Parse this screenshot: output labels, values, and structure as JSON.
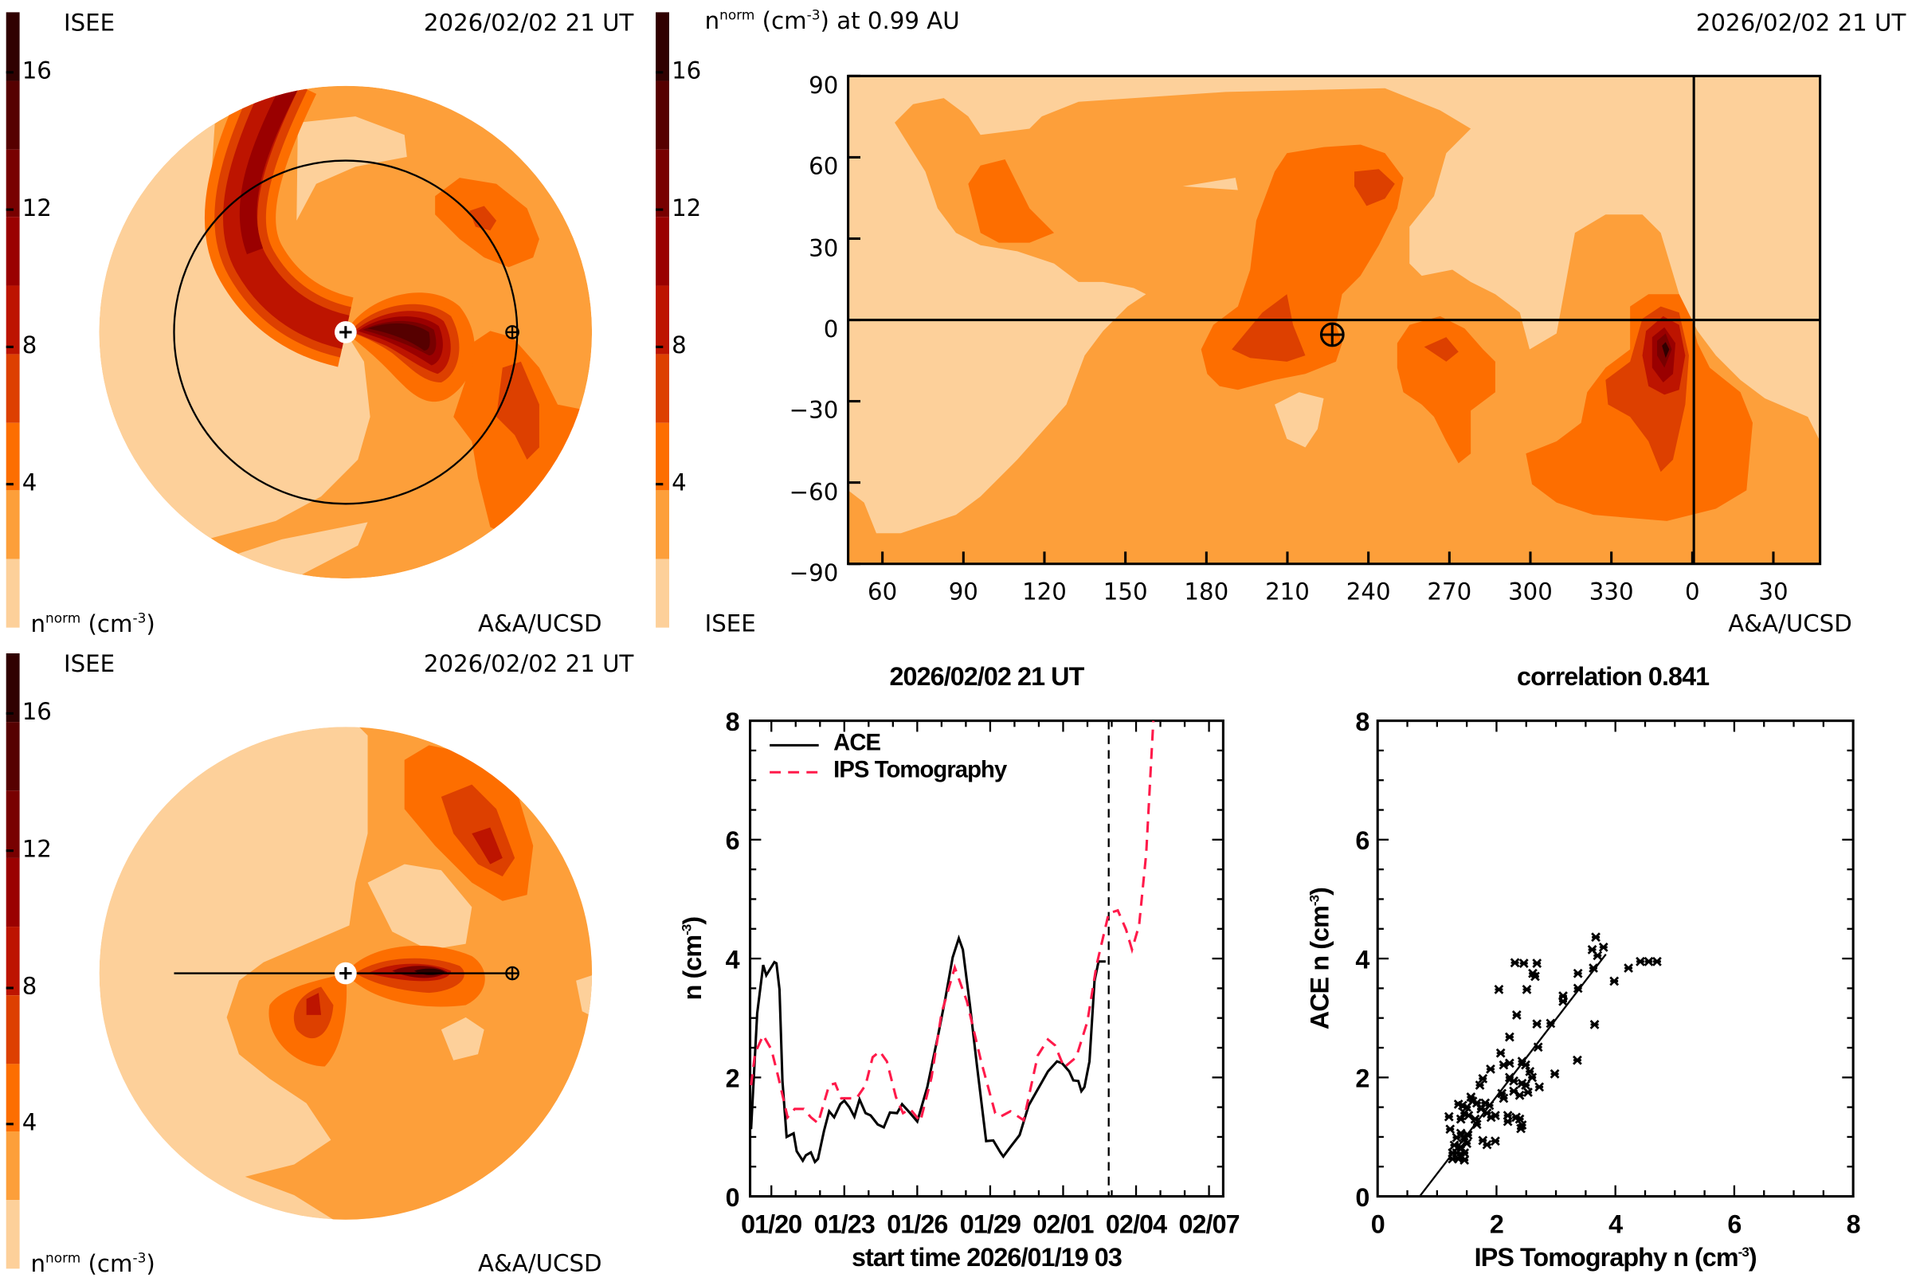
{
  "colors": {
    "levels": [
      "#fdd09a",
      "#fd9f3a",
      "#fd6e00",
      "#dd4000",
      "#bd1400",
      "#9a0000",
      "#780000",
      "#560000",
      "#300000"
    ],
    "ace": "#000000",
    "ips": "#ff1a4a"
  },
  "colorbar": {
    "ticks": [
      "16",
      "12",
      "8",
      "4"
    ],
    "range": [
      0,
      18
    ]
  },
  "panel_ecliptic": {
    "logo": "ISEE",
    "date": "2026/02/02 21 UT",
    "unit_n": "n",
    "unit_sup": "norm",
    "unit_rest": "(cm",
    "unit_exp": "-3",
    "unit_close": ")",
    "credit": "A&A/UCSD"
  },
  "panel_map": {
    "title_n": "n",
    "title_sup": "norm",
    "title_unit": "(cm",
    "title_exp": "-3",
    "title_rest": ") at 0.99 AU",
    "date": "2026/02/02 21 UT",
    "x_ticks": [
      "60",
      "90",
      "120",
      "150",
      "180",
      "210",
      "240",
      "270",
      "300",
      "330",
      "0",
      "30"
    ],
    "y_ticks": [
      "90",
      "60",
      "30",
      "0",
      "−30",
      "−60",
      "−90"
    ],
    "logo": "ISEE",
    "credit": "A&A/UCSD"
  },
  "panel_meridional": {
    "logo": "ISEE",
    "date": "2026/02/02 21 UT",
    "unit_n": "n",
    "unit_sup": "norm",
    "unit_rest": "(cm",
    "unit_exp": "-3",
    "unit_close": ")",
    "credit": "A&A/UCSD"
  },
  "chart_data": [
    {
      "type": "line",
      "title": "2026/02/02 21 UT",
      "xlabel": "start time 2026/01/19 03",
      "ylabel": "n (cm",
      "ylabel_exp": "-3",
      "ylabel_close": ")",
      "xlim": [
        "2026-01-19T03",
        "2026-02-07T14"
      ],
      "ylim": [
        0,
        8
      ],
      "y_ticks": [
        "0",
        "2",
        "4",
        "6",
        "8"
      ],
      "x_ticks": [
        {
          "label": "01/20",
          "t": "2026-01-20T00"
        },
        {
          "label": "01/23",
          "t": "2026-01-23T00"
        },
        {
          "label": "01/26",
          "t": "2026-01-26T00"
        },
        {
          "label": "01/29",
          "t": "2026-01-29T00"
        },
        {
          "label": "02/01",
          "t": "2026-02-01T00"
        },
        {
          "label": "02/04",
          "t": "2026-02-04T00"
        },
        {
          "label": "02/07",
          "t": "2026-02-07T00"
        }
      ],
      "current_time": "2026-02-02T21",
      "legend_position": "top-left",
      "series": [
        {
          "name": "ACE",
          "style": "solid",
          "points": [
            [
              "2026-01-19T04",
              1.13
            ],
            [
              "2026-01-19T10",
              3.08
            ],
            [
              "2026-01-19T16",
              3.89
            ],
            [
              "2026-01-19T19",
              3.72
            ],
            [
              "2026-01-20T03",
              3.94
            ],
            [
              "2026-01-20T05",
              3.92
            ],
            [
              "2026-01-20T08",
              3.48
            ],
            [
              "2026-01-20T11",
              1.94
            ],
            [
              "2026-01-20T15",
              1.0
            ],
            [
              "2026-01-20T22",
              1.06
            ],
            [
              "2026-01-21T01",
              0.76
            ],
            [
              "2026-01-21T07",
              0.6
            ],
            [
              "2026-01-21T10",
              0.69
            ],
            [
              "2026-01-21T15",
              0.74
            ],
            [
              "2026-01-21T19",
              0.58
            ],
            [
              "2026-01-21T22",
              0.63
            ],
            [
              "2026-01-22T04",
              1.1
            ],
            [
              "2026-01-22T09",
              1.43
            ],
            [
              "2026-01-22T14",
              1.33
            ],
            [
              "2026-01-22T20",
              1.55
            ],
            [
              "2026-01-23T00",
              1.61
            ],
            [
              "2026-01-23T05",
              1.5
            ],
            [
              "2026-01-23T10",
              1.34
            ],
            [
              "2026-01-23T15",
              1.63
            ],
            [
              "2026-01-23T21",
              1.4
            ],
            [
              "2026-01-24T02",
              1.36
            ],
            [
              "2026-01-24T09",
              1.21
            ],
            [
              "2026-01-24T15",
              1.16
            ],
            [
              "2026-01-24T21",
              1.41
            ],
            [
              "2026-01-25T04",
              1.4
            ],
            [
              "2026-01-25T09",
              1.55
            ],
            [
              "2026-01-25T17",
              1.4
            ],
            [
              "2026-01-26T00",
              1.26
            ],
            [
              "2026-01-26T10",
              1.84
            ],
            [
              "2026-01-26T21",
              2.74
            ],
            [
              "2026-01-27T04",
              3.35
            ],
            [
              "2026-01-27T11",
              4.02
            ],
            [
              "2026-01-27T17",
              4.34
            ],
            [
              "2026-01-27T21",
              4.15
            ],
            [
              "2026-01-28T04",
              3.21
            ],
            [
              "2026-01-28T11",
              2.2
            ],
            [
              "2026-01-28T20",
              0.93
            ],
            [
              "2026-01-29T03",
              0.94
            ],
            [
              "2026-01-29T10",
              0.74
            ],
            [
              "2026-01-29T13",
              0.67
            ],
            [
              "2026-01-29T20",
              0.83
            ],
            [
              "2026-01-30T05",
              1.03
            ],
            [
              "2026-01-30T14",
              1.53
            ],
            [
              "2026-01-30T23",
              1.8
            ],
            [
              "2026-01-31T09",
              2.1
            ],
            [
              "2026-01-31T18",
              2.27
            ],
            [
              "2026-01-31T23",
              2.24
            ],
            [
              "2026-02-01T06",
              2.1
            ],
            [
              "2026-02-01T10",
              1.95
            ],
            [
              "2026-02-01T15",
              1.94
            ],
            [
              "2026-02-01T18",
              1.77
            ],
            [
              "2026-02-01T21",
              1.84
            ],
            [
              "2026-02-02T02",
              2.27
            ],
            [
              "2026-02-02T07",
              3.62
            ],
            [
              "2026-02-02T11",
              3.95
            ],
            [
              "2026-02-02T18",
              3.95
            ]
          ]
        },
        {
          "name": "IPS Tomography",
          "style": "dashed",
          "points": [
            [
              "2026-01-19T04",
              1.87
            ],
            [
              "2026-01-19T08",
              2.41
            ],
            [
              "2026-01-19T16",
              2.71
            ],
            [
              "2026-01-20T00",
              2.47
            ],
            [
              "2026-01-20T07",
              2.0
            ],
            [
              "2026-01-20T16",
              1.33
            ],
            [
              "2026-01-20T23",
              1.47
            ],
            [
              "2026-01-21T08",
              1.47
            ],
            [
              "2026-01-21T15",
              1.33
            ],
            [
              "2026-01-21T22",
              1.23
            ],
            [
              "2026-01-22T09",
              1.87
            ],
            [
              "2026-01-22T15",
              1.9
            ],
            [
              "2026-01-22T21",
              1.65
            ],
            [
              "2026-01-23T12",
              1.65
            ],
            [
              "2026-01-23T21",
              1.87
            ],
            [
              "2026-01-24T04",
              2.34
            ],
            [
              "2026-01-24T11",
              2.44
            ],
            [
              "2026-01-24T18",
              2.27
            ],
            [
              "2026-01-25T03",
              1.67
            ],
            [
              "2026-01-25T10",
              1.4
            ],
            [
              "2026-01-25T17",
              1.47
            ],
            [
              "2026-01-26T03",
              1.26
            ],
            [
              "2026-01-26T14",
              2.0
            ],
            [
              "2026-01-27T00",
              3.08
            ],
            [
              "2026-01-27T13",
              3.85
            ],
            [
              "2026-01-28T01",
              3.28
            ],
            [
              "2026-01-28T15",
              2.27
            ],
            [
              "2026-01-29T05",
              1.4
            ],
            [
              "2026-01-29T10",
              1.34
            ],
            [
              "2026-01-29T20",
              1.43
            ],
            [
              "2026-01-30T09",
              1.28
            ],
            [
              "2026-01-30T23",
              2.37
            ],
            [
              "2026-01-31T09",
              2.64
            ],
            [
              "2026-01-31T16",
              2.54
            ],
            [
              "2026-02-01T01",
              2.17
            ],
            [
              "2026-02-01T13",
              2.34
            ],
            [
              "2026-02-02T00",
              2.94
            ],
            [
              "2026-02-02T09",
              3.89
            ],
            [
              "2026-02-02T21",
              4.76
            ],
            [
              "2026-02-03T06",
              4.81
            ],
            [
              "2026-02-03T14",
              4.49
            ],
            [
              "2026-02-03T20",
              4.15
            ],
            [
              "2026-02-04T03",
              4.56
            ],
            [
              "2026-02-04T10",
              5.77
            ],
            [
              "2026-02-04T17",
              8.0
            ]
          ]
        }
      ]
    },
    {
      "type": "scatter",
      "title": "correlation 0.841",
      "xlabel": "IPS Tomography n (cm",
      "xlabel_exp": "-3",
      "xlabel_close": ")",
      "ylabel": "ACE n (cm",
      "ylabel_exp": "-3",
      "ylabel_close": ")",
      "xlim": [
        0,
        8
      ],
      "ylim": [
        0,
        8
      ],
      "x_ticks": [
        "0",
        "2",
        "4",
        "6",
        "8"
      ],
      "y_ticks": [
        "0",
        "2",
        "4",
        "6",
        "8"
      ],
      "fit_line": {
        "slope": 1.3,
        "intercept": -0.92,
        "x_range": [
          0.71,
          3.84
        ]
      },
      "points": [
        [
          3.67,
          4.36
        ],
        [
          3.61,
          4.15
        ],
        [
          3.8,
          4.19
        ],
        [
          3.7,
          4.05
        ],
        [
          3.63,
          3.84
        ],
        [
          2.31,
          3.93
        ],
        [
          2.46,
          3.92
        ],
        [
          2.68,
          3.92
        ],
        [
          2.61,
          3.75
        ],
        [
          2.65,
          3.7
        ],
        [
          3.37,
          3.75
        ],
        [
          4.42,
          3.95
        ],
        [
          4.56,
          3.95
        ],
        [
          4.7,
          3.95
        ],
        [
          4.22,
          3.84
        ],
        [
          3.98,
          3.62
        ],
        [
          3.37,
          3.5
        ],
        [
          2.04,
          3.48
        ],
        [
          2.51,
          3.48
        ],
        [
          3.12,
          3.37
        ],
        [
          3.12,
          3.28
        ],
        [
          2.34,
          3.05
        ],
        [
          2.91,
          2.91
        ],
        [
          2.68,
          2.9
        ],
        [
          3.65,
          2.89
        ],
        [
          2.22,
          2.68
        ],
        [
          2.7,
          2.51
        ],
        [
          2.07,
          2.41
        ],
        [
          2.12,
          2.21
        ],
        [
          2.22,
          2.24
        ],
        [
          2.43,
          2.27
        ],
        [
          3.36,
          2.29
        ],
        [
          1.9,
          2.14
        ],
        [
          2.49,
          2.21
        ],
        [
          2.56,
          2.1
        ],
        [
          2.6,
          2.0
        ],
        [
          2.98,
          2.06
        ],
        [
          1.77,
          1.98
        ],
        [
          2.22,
          2.0
        ],
        [
          2.29,
          1.94
        ],
        [
          2.43,
          1.9
        ],
        [
          2.49,
          1.87
        ],
        [
          1.72,
          1.87
        ],
        [
          2.72,
          1.84
        ],
        [
          2.09,
          1.73
        ],
        [
          2.29,
          1.77
        ],
        [
          2.53,
          1.75
        ],
        [
          2.12,
          1.65
        ],
        [
          2.39,
          1.7
        ],
        [
          1.57,
          1.67
        ],
        [
          1.6,
          1.6
        ],
        [
          1.67,
          1.57
        ],
        [
          1.81,
          1.57
        ],
        [
          1.88,
          1.53
        ],
        [
          1.36,
          1.55
        ],
        [
          1.43,
          1.53
        ],
        [
          1.5,
          1.5
        ],
        [
          1.74,
          1.47
        ],
        [
          1.84,
          1.4
        ],
        [
          1.46,
          1.4
        ],
        [
          1.53,
          1.36
        ],
        [
          1.2,
          1.34
        ],
        [
          1.98,
          1.36
        ],
        [
          2.19,
          1.36
        ],
        [
          2.33,
          1.33
        ],
        [
          1.4,
          1.3
        ],
        [
          1.64,
          1.3
        ],
        [
          1.91,
          1.33
        ],
        [
          2.19,
          1.26
        ],
        [
          2.39,
          1.3
        ],
        [
          1.67,
          1.21
        ],
        [
          2.43,
          1.2
        ],
        [
          2.41,
          1.14
        ],
        [
          1.22,
          1.13
        ],
        [
          1.4,
          1.06
        ],
        [
          1.52,
          1.03
        ],
        [
          1.33,
          0.99
        ],
        [
          1.46,
          0.96
        ],
        [
          1.77,
          0.94
        ],
        [
          1.98,
          0.93
        ],
        [
          1.84,
          0.87
        ],
        [
          1.29,
          0.86
        ],
        [
          1.4,
          0.83
        ],
        [
          1.5,
          0.89
        ],
        [
          1.33,
          0.73
        ],
        [
          1.4,
          0.69
        ],
        [
          1.46,
          0.73
        ],
        [
          1.26,
          0.63
        ],
        [
          1.36,
          0.63
        ],
        [
          1.46,
          0.61
        ],
        [
          1.26,
          0.73
        ]
      ]
    }
  ]
}
